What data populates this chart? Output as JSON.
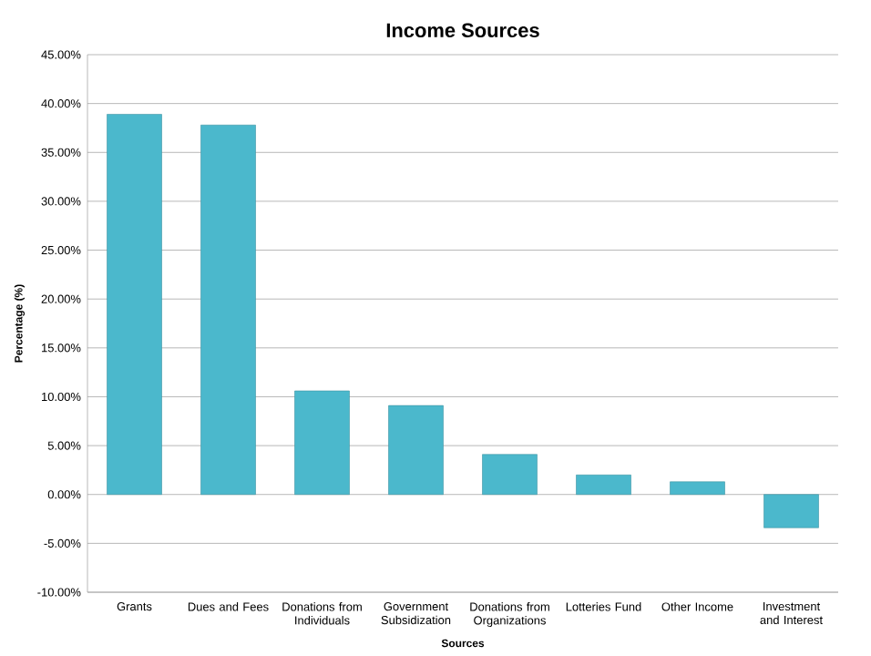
{
  "chart_data": {
    "type": "bar",
    "title": "Income Sources",
    "xlabel": "Sources",
    "ylabel": "Percentage (%)",
    "categories": [
      "Grants",
      "Dues and Fees",
      "Donations from Individuals",
      "Government Subsidization",
      "Donations from Organizations",
      "Lotteries Fund",
      "Other Income",
      "Investment and Interest"
    ],
    "values": [
      38.9,
      37.8,
      10.6,
      9.1,
      4.1,
      2.0,
      1.3,
      -3.4
    ],
    "color": "#4bb8cc",
    "ylim": [
      -10,
      45
    ],
    "yticks": [
      {
        "value": -10,
        "label": "-10.00%"
      },
      {
        "value": -5,
        "label": "-5.00%"
      },
      {
        "value": 0,
        "label": "0.00%"
      },
      {
        "value": 5,
        "label": "5.00%"
      },
      {
        "value": 10,
        "label": "10.00%"
      },
      {
        "value": 15,
        "label": "15.00%"
      },
      {
        "value": 20,
        "label": "20.00%"
      },
      {
        "value": 25,
        "label": "25.00%"
      },
      {
        "value": 30,
        "label": "30.00%"
      },
      {
        "value": 35,
        "label": "35.00%"
      },
      {
        "value": 40,
        "label": "40.00%"
      },
      {
        "value": 45,
        "label": "45.00%"
      }
    ],
    "grid": "y"
  }
}
